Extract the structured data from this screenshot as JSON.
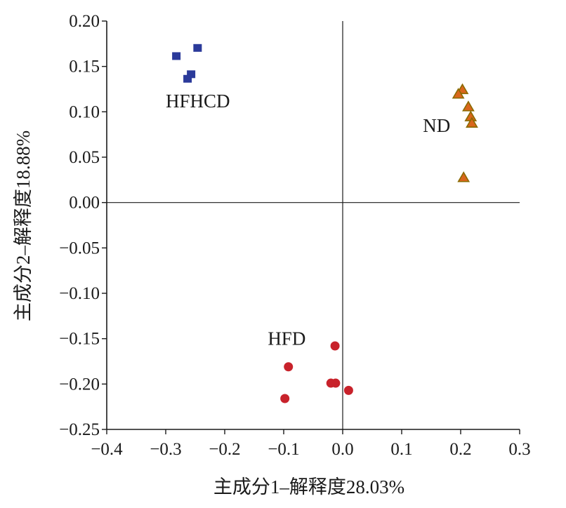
{
  "chart_data": {
    "type": "scatter",
    "title": "",
    "xlabel": "主成分1–解释度28.03%",
    "ylabel": "主成分2–解释度18.88%",
    "xlim": [
      -0.4,
      0.3
    ],
    "ylim": [
      -0.25,
      0.2
    ],
    "x_ticks": [
      {
        "value": -0.4,
        "label": "−0.4"
      },
      {
        "value": -0.3,
        "label": "−0.3"
      },
      {
        "value": -0.2,
        "label": "−0.2"
      },
      {
        "value": -0.1,
        "label": "−0.1"
      },
      {
        "value": 0.0,
        "label": "0.0"
      },
      {
        "value": 0.1,
        "label": "0.1"
      },
      {
        "value": 0.2,
        "label": "0.2"
      },
      {
        "value": 0.3,
        "label": "0.3"
      }
    ],
    "y_ticks": [
      {
        "value": 0.2,
        "label": "0.20"
      },
      {
        "value": 0.15,
        "label": "0.15"
      },
      {
        "value": 0.1,
        "label": "0.10"
      },
      {
        "value": 0.05,
        "label": "0.05"
      },
      {
        "value": 0.0,
        "label": "0.00"
      },
      {
        "value": -0.05,
        "label": "−0.05"
      },
      {
        "value": -0.1,
        "label": "−0.10"
      },
      {
        "value": -0.15,
        "label": "−0.15"
      },
      {
        "value": -0.2,
        "label": "−0.20"
      },
      {
        "value": -0.25,
        "label": "−0.25"
      }
    ],
    "grid": false,
    "reference_lines": {
      "x": 0,
      "y": 0
    },
    "series": [
      {
        "name": "HFHCD",
        "marker": "square",
        "color": "#2b3a9a",
        "label_anchor": [
          -0.3,
          0.105
        ],
        "points": [
          [
            -0.282,
            0.161
          ],
          [
            -0.246,
            0.17
          ],
          [
            -0.257,
            0.141
          ],
          [
            -0.263,
            0.136
          ]
        ]
      },
      {
        "name": "ND",
        "marker": "triangle",
        "color": "#d9661c",
        "edge_color": "#8a6a00",
        "label_anchor": [
          0.136,
          0.078
        ],
        "points": [
          [
            0.203,
            0.124
          ],
          [
            0.196,
            0.119
          ],
          [
            0.213,
            0.105
          ],
          [
            0.217,
            0.094
          ],
          [
            0.219,
            0.087
          ],
          [
            0.205,
            0.027
          ]
        ]
      },
      {
        "name": "HFD",
        "marker": "circle",
        "color": "#c8222b",
        "label_anchor": [
          -0.127,
          -0.157
        ],
        "points": [
          [
            -0.013,
            -0.158
          ],
          [
            -0.092,
            -0.181
          ],
          [
            -0.02,
            -0.199
          ],
          [
            -0.012,
            -0.199
          ],
          [
            0.01,
            -0.207
          ],
          [
            -0.098,
            -0.216
          ]
        ]
      }
    ]
  }
}
